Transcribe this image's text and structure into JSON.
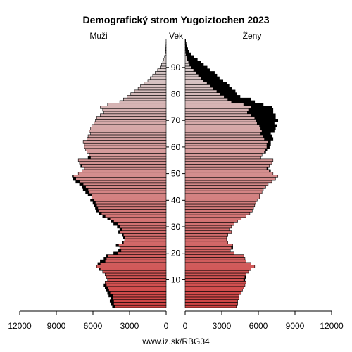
{
  "chart_data": {
    "type": "bar",
    "title": "Demografický strom Yugoiztochen 2023",
    "left_label": "Muži",
    "center_label": "Vek",
    "right_label": "Ženy",
    "source": "www.iz.sk/RBG34",
    "xlim": [
      0,
      12000
    ],
    "x_ticks": [
      12000,
      9000,
      6000,
      3000,
      0
    ],
    "x_tick_labels": [
      "12000",
      "9000",
      "6000",
      "3000",
      "0"
    ],
    "right_tick_labels": [
      "0",
      "3000",
      "6000",
      "9000",
      "12000"
    ],
    "age_ticks": [
      10,
      20,
      30,
      40,
      50,
      60,
      70,
      80,
      90
    ],
    "ages": [
      0,
      1,
      2,
      3,
      4,
      5,
      6,
      7,
      8,
      9,
      10,
      11,
      12,
      13,
      14,
      15,
      16,
      17,
      18,
      19,
      20,
      21,
      22,
      23,
      24,
      25,
      26,
      27,
      28,
      29,
      30,
      31,
      32,
      33,
      34,
      35,
      36,
      37,
      38,
      39,
      40,
      41,
      42,
      43,
      44,
      45,
      46,
      47,
      48,
      49,
      50,
      51,
      52,
      53,
      54,
      55,
      56,
      57,
      58,
      59,
      60,
      61,
      62,
      63,
      64,
      65,
      66,
      67,
      68,
      69,
      70,
      71,
      72,
      73,
      74,
      75,
      76,
      77,
      78,
      79,
      80,
      81,
      82,
      83,
      84,
      85,
      86,
      87,
      88,
      89,
      90,
      91,
      92,
      93,
      94,
      95,
      96,
      97,
      98,
      99,
      100
    ],
    "male": [
      4400,
      4500,
      4600,
      4500,
      4700,
      4800,
      4900,
      5000,
      5100,
      5000,
      4800,
      4900,
      5000,
      5200,
      5500,
      5700,
      5600,
      5400,
      5100,
      4900,
      4300,
      3900,
      3800,
      4100,
      3600,
      3400,
      3500,
      3600,
      3900,
      3800,
      4000,
      4300,
      4500,
      4800,
      5200,
      5500,
      5700,
      5800,
      5900,
      6000,
      6200,
      6100,
      6400,
      6600,
      6800,
      6900,
      7100,
      7400,
      7600,
      7700,
      7200,
      6900,
      6700,
      7000,
      7100,
      7200,
      6400,
      6300,
      6500,
      6600,
      6700,
      6700,
      6800,
      6500,
      6400,
      6200,
      6300,
      6200,
      6100,
      5900,
      5800,
      5700,
      5400,
      5100,
      5200,
      5400,
      4800,
      3800,
      3500,
      3200,
      2900,
      2600,
      2300,
      2100,
      1800,
      1500,
      1300,
      1100,
      900,
      700,
      500,
      380,
      280,
      190,
      130,
      80,
      50,
      30,
      20,
      10,
      5
    ],
    "female": [
      4200,
      4300,
      4300,
      4400,
      4400,
      4600,
      4700,
      4800,
      4900,
      5000,
      4900,
      5000,
      5000,
      5200,
      5400,
      5700,
      5400,
      5000,
      4900,
      4800,
      4000,
      3700,
      3900,
      3900,
      3500,
      3400,
      3400,
      3500,
      3800,
      3600,
      3800,
      4000,
      4300,
      4600,
      5000,
      5300,
      5500,
      5600,
      5700,
      5800,
      5900,
      6100,
      6100,
      6300,
      6400,
      6600,
      6800,
      7100,
      7400,
      7600,
      7200,
      7000,
      6800,
      6900,
      7100,
      7200,
      6200,
      6300,
      6600,
      6700,
      6900,
      7000,
      7000,
      7200,
      7100,
      7000,
      7300,
      7400,
      7500,
      7300,
      7600,
      7400,
      7400,
      7200,
      7200,
      7100,
      6400,
      5700,
      5400,
      4500,
      4200,
      4100,
      3800,
      3600,
      3400,
      3100,
      2800,
      2600,
      2400,
      2000,
      1800,
      1500,
      1300,
      1000,
      700,
      500,
      320,
      210,
      130,
      80,
      40
    ],
    "female_surplus_note": "",
    "colors": {
      "male_young": "#d04444",
      "male_old": "#d8d8d8",
      "female_young": "#d04444",
      "female_old": "#d8d8d8",
      "surplus": "#000000",
      "outline": "#000000"
    }
  }
}
